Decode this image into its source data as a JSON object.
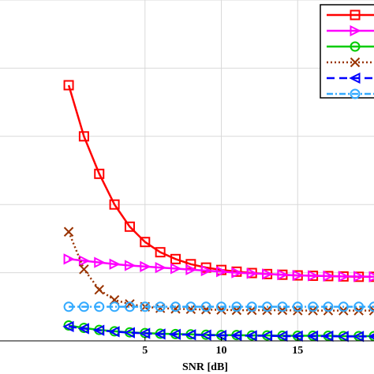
{
  "chart_data": {
    "type": "line",
    "xlabel": "SNR [dB]",
    "ylabel": "",
    "xlim": [
      -4.5,
      20
    ],
    "ylim": [
      0,
      10
    ],
    "xticks": [
      5,
      10,
      15
    ],
    "xtick_labels": [
      "5",
      "10",
      "15"
    ],
    "grid": true,
    "legend_position": "top-right",
    "series": [
      {
        "color": "#ff0000",
        "linestyle": "solid",
        "marker": "square",
        "x": [
          0,
          1,
          2,
          3,
          4,
          5,
          6,
          7,
          8,
          9,
          10,
          11,
          12,
          13,
          14,
          15,
          16,
          17,
          18,
          19,
          20
        ],
        "y": [
          7.5,
          6.0,
          4.9,
          4.0,
          3.35,
          2.9,
          2.6,
          2.4,
          2.25,
          2.15,
          2.08,
          2.03,
          1.99,
          1.96,
          1.94,
          1.92,
          1.91,
          1.9,
          1.89,
          1.88,
          1.88
        ]
      },
      {
        "color": "#ff00ff",
        "linestyle": "solid",
        "marker": "triangle-right",
        "x": [
          0,
          1,
          2,
          3,
          4,
          5,
          6,
          7,
          8,
          9,
          10,
          11,
          12,
          13,
          14,
          15,
          16,
          17,
          18,
          19,
          20
        ],
        "y": [
          2.4,
          2.35,
          2.3,
          2.25,
          2.21,
          2.18,
          2.15,
          2.12,
          2.09,
          2.06,
          2.03,
          2.0,
          1.98,
          1.96,
          1.94,
          1.92,
          1.91,
          1.9,
          1.89,
          1.89,
          1.88
        ]
      },
      {
        "color": "#00cc00",
        "linestyle": "solid",
        "marker": "circle",
        "x": [
          0,
          1,
          2,
          3,
          4,
          5,
          6,
          7,
          8,
          9,
          10,
          11,
          12,
          13,
          14,
          15,
          16,
          17,
          18,
          19,
          20
        ],
        "y": [
          0.45,
          0.38,
          0.32,
          0.28,
          0.25,
          0.23,
          0.21,
          0.2,
          0.19,
          0.18,
          0.17,
          0.17,
          0.16,
          0.16,
          0.15,
          0.15,
          0.15,
          0.15,
          0.14,
          0.14,
          0.14
        ]
      },
      {
        "color": "#993300",
        "linestyle": "dotted",
        "marker": "x",
        "x": [
          0,
          1,
          2,
          3,
          4,
          5,
          6,
          7,
          8,
          9,
          10,
          11,
          12,
          13,
          14,
          15,
          16,
          17,
          18,
          19,
          20
        ],
        "y": [
          3.2,
          2.1,
          1.5,
          1.2,
          1.08,
          1.0,
          0.96,
          0.94,
          0.93,
          0.92,
          0.91,
          0.9,
          0.9,
          0.9,
          0.9,
          0.89,
          0.89,
          0.89,
          0.89,
          0.89,
          0.89
        ]
      },
      {
        "color": "#0000ff",
        "linestyle": "dashed",
        "marker": "triangle-left",
        "x": [
          0,
          1,
          2,
          3,
          4,
          5,
          6,
          7,
          8,
          9,
          10,
          11,
          12,
          13,
          14,
          15,
          16,
          17,
          18,
          19,
          20
        ],
        "y": [
          0.42,
          0.36,
          0.31,
          0.27,
          0.24,
          0.22,
          0.2,
          0.19,
          0.18,
          0.17,
          0.16,
          0.16,
          0.15,
          0.15,
          0.14,
          0.14,
          0.14,
          0.14,
          0.13,
          0.13,
          0.13
        ]
      },
      {
        "color": "#33aaff",
        "linestyle": "dashdot",
        "marker": "circle",
        "x": [
          0,
          1,
          2,
          3,
          4,
          5,
          6,
          7,
          8,
          9,
          10,
          11,
          12,
          13,
          14,
          15,
          16,
          17,
          18,
          19,
          20
        ],
        "y": [
          1.0,
          1.0,
          1.0,
          1.0,
          1.0,
          1.0,
          1.0,
          1.0,
          1.0,
          1.0,
          1.0,
          1.0,
          1.0,
          1.0,
          1.0,
          1.0,
          1.0,
          1.0,
          1.0,
          1.0,
          1.0
        ]
      }
    ]
  }
}
